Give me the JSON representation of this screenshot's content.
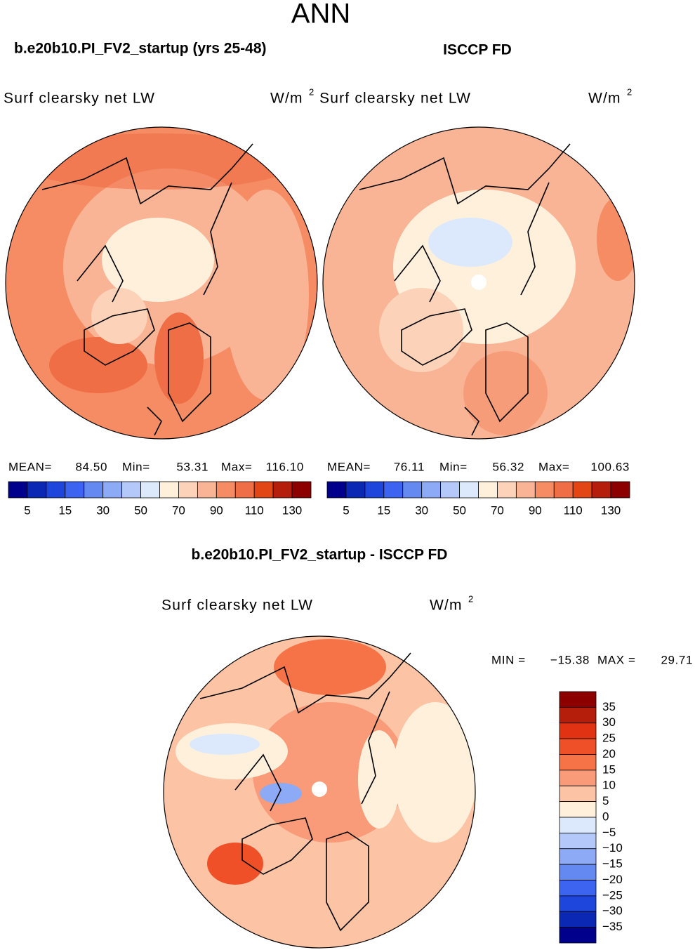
{
  "title": "ANN",
  "panels": [
    {
      "title": "b.e20b10.PI_FV2_startup (yrs 25-48)",
      "variable": "Surf clearsky net LW",
      "units": {
        "base": "W/m",
        "sup": "2"
      },
      "stats": [
        {
          "label": "MEAN=",
          "value": "84.50"
        },
        {
          "label": "Min=",
          "value": "53.31"
        },
        {
          "label": "Max=",
          "value": "116.10"
        }
      ],
      "colorbar": {
        "colors": [
          "#00008c",
          "#0a28b4",
          "#1e46dc",
          "#3c64f0",
          "#6489f0",
          "#8caaf5",
          "#b4c8fa",
          "#dce9fc",
          "#fff0dc",
          "#fcd2b9",
          "#f9b496",
          "#f58c64",
          "#f06e46",
          "#e14614",
          "#b41e0a",
          "#8c0000"
        ],
        "labels": [
          "5",
          "15",
          "30",
          "50",
          "70",
          "90",
          "110",
          "130"
        ]
      }
    },
    {
      "title": "ISCCP FD",
      "variable": "Surf clearsky net LW",
      "units": {
        "base": "W/m",
        "sup": "2"
      },
      "stats": [
        {
          "label": "MEAN=",
          "value": "76.11"
        },
        {
          "label": "Min=",
          "value": "56.32"
        },
        {
          "label": "Max=",
          "value": "100.63"
        }
      ],
      "colorbar": {
        "colors": [
          "#00008c",
          "#0a28b4",
          "#1e46dc",
          "#3c64f0",
          "#6489f0",
          "#8caaf5",
          "#b4c8fa",
          "#dce9fc",
          "#fff0dc",
          "#fcd2b9",
          "#f9b496",
          "#f58c64",
          "#f06e46",
          "#e14614",
          "#b41e0a",
          "#8c0000"
        ],
        "labels": [
          "5",
          "15",
          "30",
          "50",
          "70",
          "90",
          "110",
          "130"
        ]
      }
    }
  ],
  "difference": {
    "title": "b.e20b10.PI_FV2_startup - ISCCP FD",
    "variable": "Surf clearsky net LW",
    "units": {
      "base": "W/m",
      "sup": "2"
    },
    "stats": [
      {
        "label": "MIN =",
        "value": "−15.38"
      },
      {
        "label": "MAX =",
        "value": "29.71"
      }
    ],
    "colorbar": {
      "colors": [
        "#8c0000",
        "#b41e0a",
        "#e13214",
        "#f05028",
        "#f57346",
        "#f99b78",
        "#fcc3a5",
        "#fff0dc",
        "#dce9fc",
        "#b4c8fa",
        "#8caaf5",
        "#6489f0",
        "#3c64f0",
        "#1e46dc",
        "#0a28b4",
        "#00008c"
      ],
      "labels": [
        "35",
        "30",
        "25",
        "20",
        "15",
        "10",
        "5",
        "0",
        "−5",
        "−10",
        "−15",
        "−20",
        "−25",
        "−30",
        "−35"
      ]
    }
  }
}
